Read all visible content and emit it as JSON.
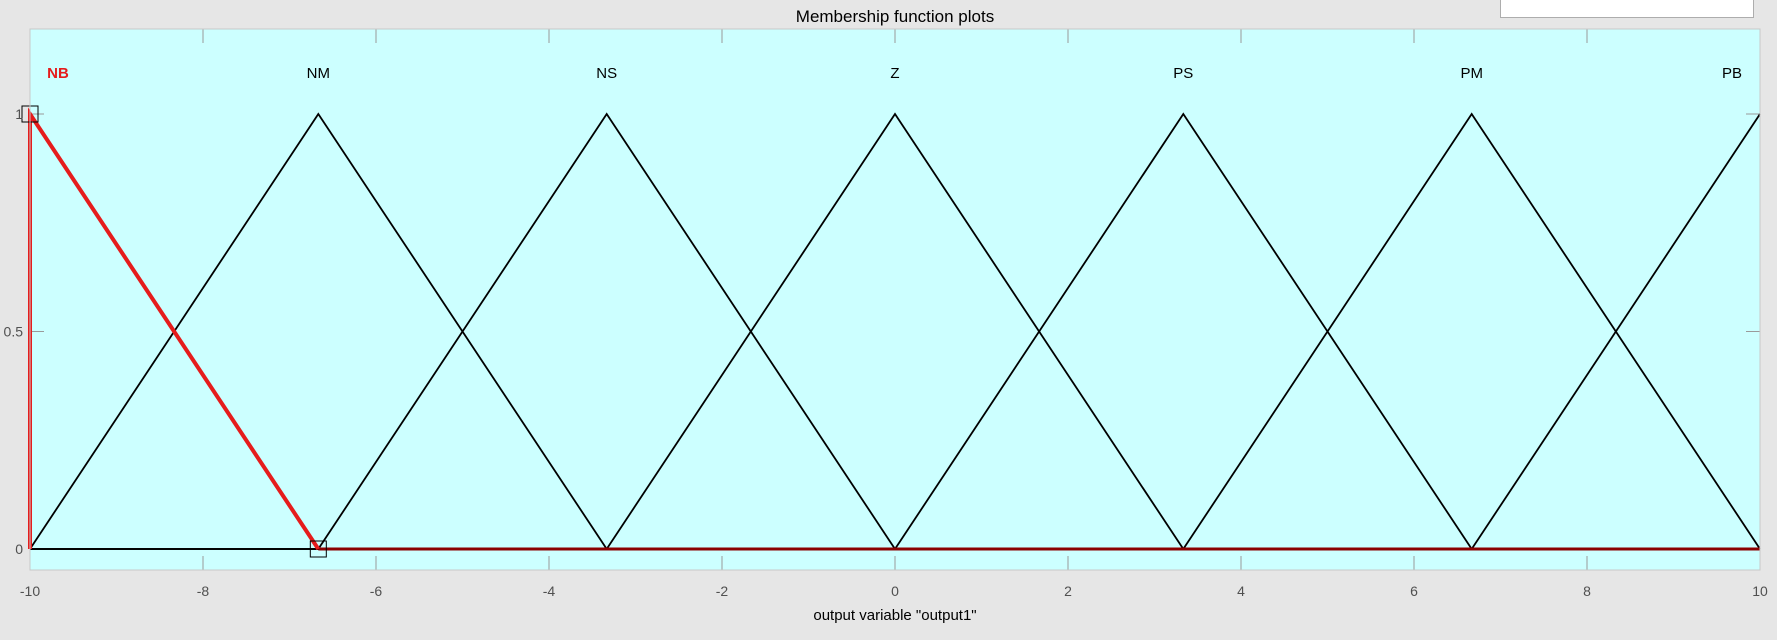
{
  "chart_data": {
    "type": "line",
    "title": "Membership function plots",
    "xlabel": "output variable \"output1\"",
    "ylabel": "",
    "xlim": [
      -10,
      10
    ],
    "ylim": [
      0,
      1
    ],
    "x_ticks": [
      -10,
      -8,
      -6,
      -4,
      -2,
      0,
      2,
      4,
      6,
      8,
      10
    ],
    "x_tick_labels": [
      "-10",
      "-8",
      "-6",
      "-4",
      "-2",
      "0",
      "2",
      "4",
      "6",
      "8",
      "10"
    ],
    "y_ticks": [
      0,
      0.5,
      1
    ],
    "y_tick_labels": [
      "0",
      "0.5",
      "1"
    ],
    "grid": false,
    "background_color": "#ccffff",
    "selected_color": "#e51c1c",
    "line_color": "#000000",
    "series": [
      {
        "name": "NB",
        "selected": true,
        "x": [
          -10,
          -10,
          -6.667
        ],
        "y": [
          0,
          1,
          0
        ]
      },
      {
        "name": "NM",
        "selected": false,
        "x": [
          -10,
          -6.667,
          -3.333
        ],
        "y": [
          0,
          1,
          0
        ]
      },
      {
        "name": "NS",
        "selected": false,
        "x": [
          -6.667,
          -3.333,
          0
        ],
        "y": [
          0,
          1,
          0
        ]
      },
      {
        "name": "Z",
        "selected": false,
        "x": [
          -3.333,
          0,
          3.333
        ],
        "y": [
          0,
          1,
          0
        ]
      },
      {
        "name": "PS",
        "selected": false,
        "x": [
          0,
          3.333,
          6.667
        ],
        "y": [
          0,
          1,
          0
        ]
      },
      {
        "name": "PM",
        "selected": false,
        "x": [
          3.333,
          6.667,
          10
        ],
        "y": [
          0,
          1,
          0
        ]
      },
      {
        "name": "PB",
        "selected": false,
        "x": [
          6.667,
          10,
          10
        ],
        "y": [
          0,
          1,
          1
        ]
      }
    ],
    "handles": [
      {
        "x": -10,
        "y": 1
      },
      {
        "x": -6.667,
        "y": 0
      }
    ]
  }
}
